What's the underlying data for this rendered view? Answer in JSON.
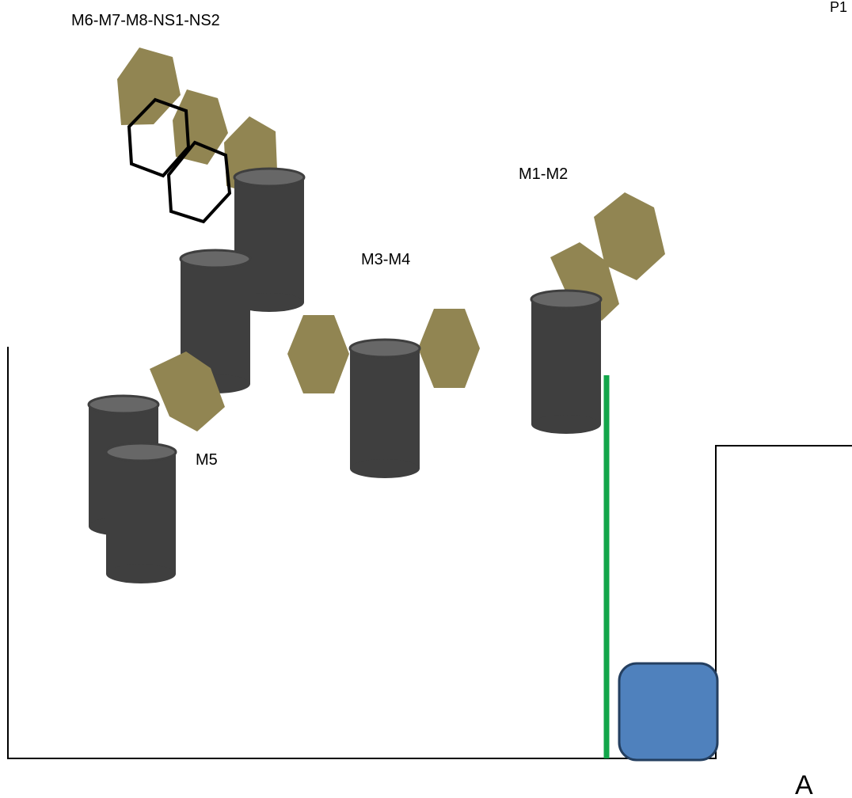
{
  "labels": {
    "complex_m6_ns2": "M6-M7-M8-NS1-NS2",
    "complex_m1_m2": "M1-M2",
    "complex_m3_m4": "M3-M4",
    "complex_m5": "M5",
    "corner_p1": "P1",
    "panel": "A"
  },
  "colors": {
    "hexagon_fill": "#918552",
    "cylinder_body": "#3f3f3f",
    "cylinder_top": "#676767",
    "green_line": "#12a64a",
    "blue_square_fill": "#4f81bd",
    "blue_square_stroke": "#243f60"
  }
}
